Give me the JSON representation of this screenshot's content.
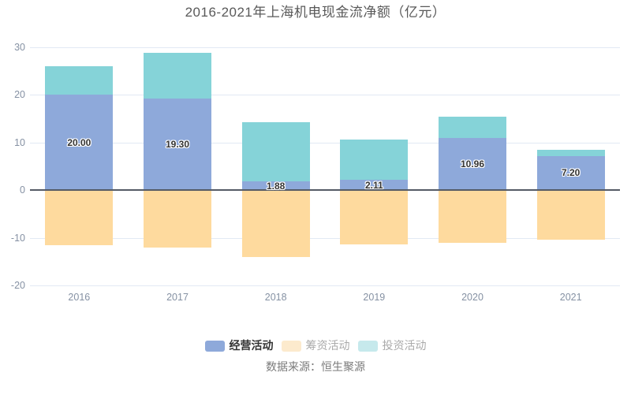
{
  "header": {
    "title": "2016-2021年上海机电现金流净额（亿元）"
  },
  "footer": {
    "source": "数据来源：恒生聚源"
  },
  "chart_data": {
    "type": "bar",
    "stacked": true,
    "title": "2016-2021年上海机电现金流净额（亿元）",
    "categories": [
      "2016",
      "2017",
      "2018",
      "2019",
      "2020",
      "2021"
    ],
    "series": [
      {
        "id": "operating",
        "name": "经营活动",
        "color": "#8EA9DA",
        "legend_color": "#8EA9DA",
        "legend_active": true,
        "values": [
          20.0,
          19.3,
          1.88,
          2.11,
          10.96,
          7.2
        ],
        "data_labels": [
          "20.00",
          "19.30",
          "1.88",
          "2.11",
          "10.96",
          "7.20"
        ]
      },
      {
        "id": "financing",
        "name": "筹资活动",
        "color": "#FEDA9E",
        "legend_color": "#FCEACD",
        "legend_active": false,
        "values": [
          -11.6,
          -12.1,
          -14.0,
          -11.4,
          -11.1,
          -10.4
        ]
      },
      {
        "id": "investing",
        "name": "投资活动",
        "color": "#85D3D8",
        "legend_color": "#C6E9EC",
        "legend_active": false,
        "values": [
          6.0,
          9.5,
          12.4,
          8.5,
          4.4,
          1.2
        ]
      }
    ],
    "ylim": [
      -20,
      30
    ],
    "yticks": [
      30,
      20,
      10,
      0,
      -10,
      -20
    ],
    "grid": true,
    "legend_position": "bottom",
    "colors": {
      "grid_line": "#E2E9F4",
      "zero_line": "#555B66",
      "axis_label": "#8591A3",
      "value_label": "#333333"
    }
  }
}
